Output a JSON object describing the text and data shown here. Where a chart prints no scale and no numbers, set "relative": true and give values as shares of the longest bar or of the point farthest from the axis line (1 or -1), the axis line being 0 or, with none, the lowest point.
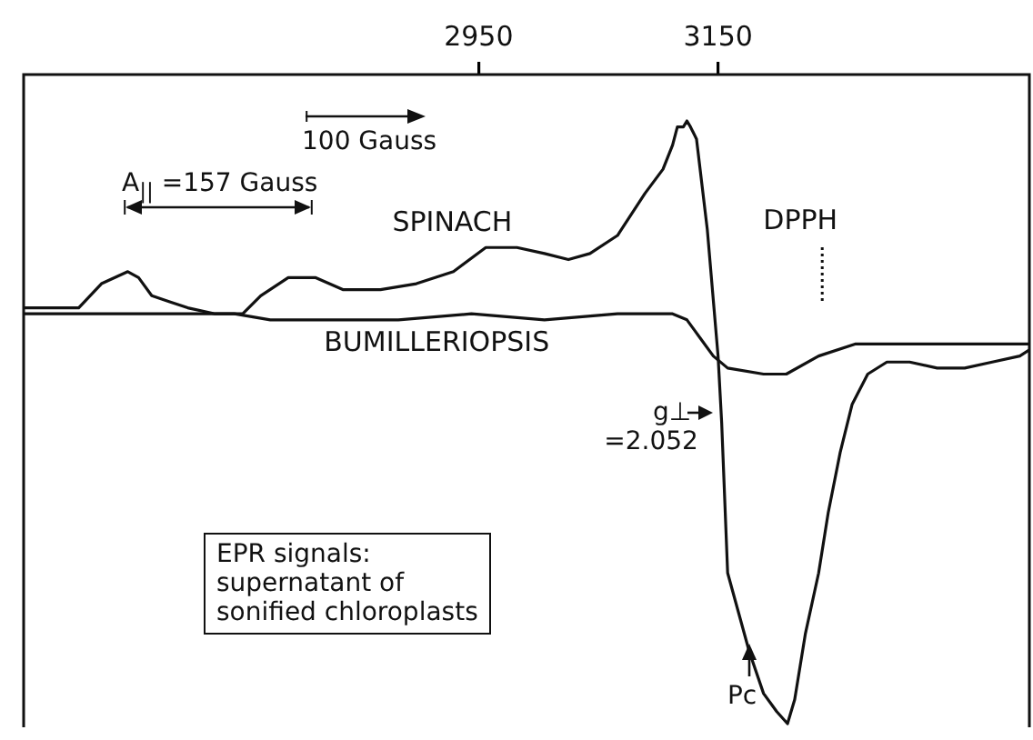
{
  "chart_data": {
    "type": "line",
    "relative": true,
    "legend": false,
    "grid": false,
    "marker": "none",
    "xlim": [
      2570,
      3410
    ],
    "xticks": [
      2950,
      3150
    ],
    "series": [
      {
        "name": "SPINACH",
        "color": "#111111",
        "x": [
          2570,
          2593,
          2616,
          2635,
          2657,
          2666,
          2677,
          2692,
          2707,
          2730,
          2753,
          2768,
          2791,
          2814,
          2837,
          2868,
          2898,
          2929,
          2956,
          2982,
          3005,
          3025,
          3043,
          3066,
          3089,
          3104,
          3112,
          3116,
          3121,
          3124,
          3127,
          3132,
          3141,
          3150,
          3153,
          3158,
          3176,
          3188,
          3199,
          3208,
          3214,
          3223,
          3234,
          3242,
          3252,
          3262,
          3275,
          3291,
          3310,
          3333,
          3356,
          3379,
          3402,
          3410
        ],
        "values": [
          0.69,
          0.69,
          0.69,
          0.73,
          0.75,
          0.74,
          0.71,
          0.7,
          0.69,
          0.68,
          0.68,
          0.71,
          0.74,
          0.74,
          0.72,
          0.72,
          0.73,
          0.75,
          0.79,
          0.79,
          0.78,
          0.77,
          0.78,
          0.81,
          0.88,
          0.92,
          0.96,
          0.99,
          0.99,
          1,
          0.99,
          0.97,
          0.82,
          0.61,
          0.5,
          0.25,
          0.12,
          0.05,
          0.02,
          0,
          0.04,
          0.15,
          0.25,
          0.35,
          0.45,
          0.53,
          0.58,
          0.6,
          0.6,
          0.59,
          0.59,
          0.6,
          0.61,
          0.62
        ]
      },
      {
        "name": "BUMILLERIOPSIS",
        "color": "#111111",
        "x": [
          2570,
          2624,
          2670,
          2700,
          2746,
          2776,
          2822,
          2883,
          2944,
          3005,
          3066,
          3112,
          3124,
          3135,
          3146,
          3158,
          3188,
          3207,
          3234,
          3265,
          3295,
          3326,
          3356,
          3387,
          3410
        ],
        "values": [
          0.68,
          0.68,
          0.68,
          0.68,
          0.68,
          0.67,
          0.67,
          0.67,
          0.68,
          0.67,
          0.68,
          0.68,
          0.67,
          0.64,
          0.61,
          0.59,
          0.58,
          0.58,
          0.61,
          0.63,
          0.63,
          0.63,
          0.63,
          0.63,
          0.63
        ]
      }
    ],
    "ref_lines": [
      {
        "axis": "x",
        "value": 3237,
        "label": "DPPH",
        "line_style": "dotted",
        "color": "#111111"
      }
    ],
    "annotations": [
      "100 Gauss",
      "A$_{||}$ =157 Gauss",
      "EPR signals:\nsupernatant of\nsonified chloroplasts",
      {
        "text": "g⊥\n=2.052",
        "x": 3155,
        "y": 0.49
      },
      {
        "text": "Pc",
        "x": 3176,
        "y": 0.12
      }
    ]
  }
}
